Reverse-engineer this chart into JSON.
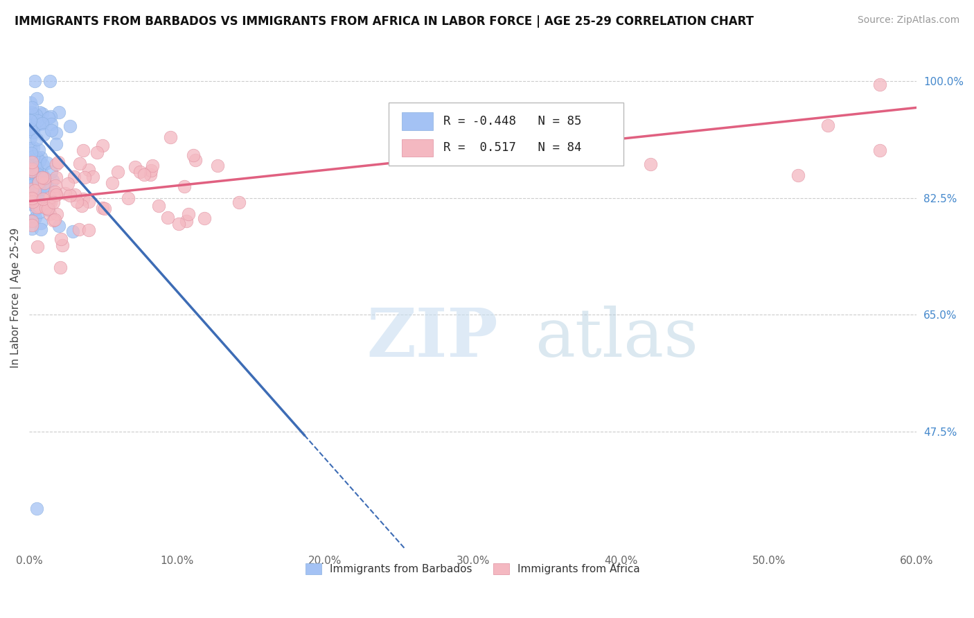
{
  "title": "IMMIGRANTS FROM BARBADOS VS IMMIGRANTS FROM AFRICA IN LABOR FORCE | AGE 25-29 CORRELATION CHART",
  "source": "Source: ZipAtlas.com",
  "ylabel": "In Labor Force | Age 25-29",
  "xlim": [
    0.0,
    0.6
  ],
  "ylim": [
    0.3,
    1.05
  ],
  "xticks": [
    0.0,
    0.1,
    0.2,
    0.3,
    0.4,
    0.5,
    0.6
  ],
  "xticklabels": [
    "0.0%",
    "10.0%",
    "20.0%",
    "30.0%",
    "40.0%",
    "50.0%",
    "60.0%"
  ],
  "ytick_positions": [
    0.475,
    0.65,
    0.825,
    1.0
  ],
  "ytick_labels": [
    "47.5%",
    "65.0%",
    "82.5%",
    "100.0%"
  ],
  "R_barbados": -0.448,
  "N_barbados": 85,
  "R_africa": 0.517,
  "N_africa": 84,
  "barbados_color": "#a4c2f4",
  "africa_color": "#f4b8c1",
  "barbados_line_color": "#3d6cb5",
  "africa_line_color": "#e06080",
  "watermark_zip": "ZIP",
  "watermark_atlas": "atlas",
  "legend_label_barbados": "Immigrants from Barbados",
  "legend_label_africa": "Immigrants from Africa",
  "title_fontsize": 12,
  "source_fontsize": 10
}
